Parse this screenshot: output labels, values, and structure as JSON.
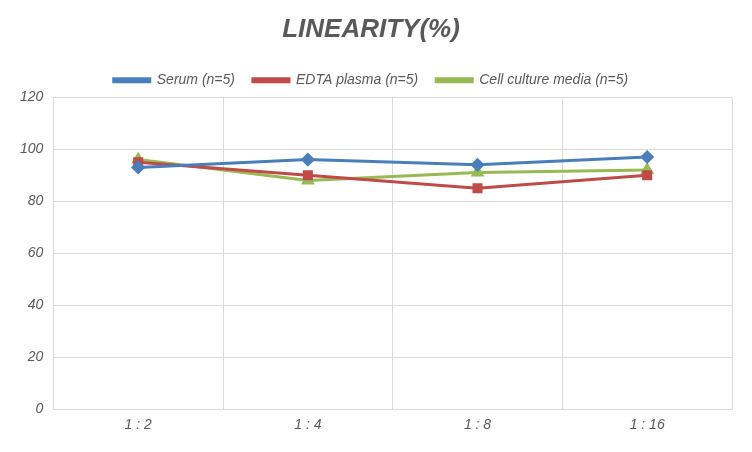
{
  "chart_data": {
    "type": "line",
    "title": "LINEARITY(%)",
    "categories": [
      "1 : 2",
      "1 : 4",
      "1 : 8",
      "1 : 16"
    ],
    "series": [
      {
        "name": "Serum (n=5)",
        "color": "#4a7ebb",
        "marker": "diamond",
        "values": [
          93,
          96,
          94,
          97
        ]
      },
      {
        "name": "EDTA plasma (n=5)",
        "color": "#be4b48",
        "marker": "square",
        "values": [
          95,
          90,
          85,
          90
        ]
      },
      {
        "name": "Cell culture media (n=5)",
        "color": "#98b954",
        "marker": "triangle",
        "values": [
          96,
          88,
          91,
          92
        ]
      }
    ],
    "ylim": [
      0,
      120
    ],
    "yticks": [
      0,
      20,
      40,
      60,
      80,
      100,
      120
    ],
    "grid": true,
    "legend": "top"
  }
}
